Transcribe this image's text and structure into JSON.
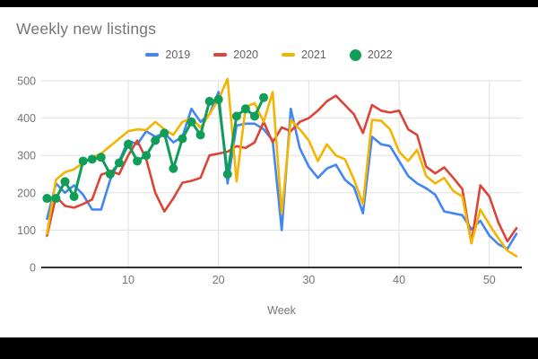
{
  "title": "Weekly new listings",
  "colors": {
    "s2019": "#4285F4",
    "s2020": "#DB4437",
    "s2021": "#F4B400",
    "s2022": "#0F9D58",
    "grid": "#e0e0e0",
    "axis_line": "#333333",
    "tick_text": "#757575",
    "title_text": "#757575",
    "legend_text": "#616161",
    "background": "#ffffff",
    "letterbox": "#000000"
  },
  "legend": {
    "items": [
      {
        "label": "2019",
        "color": "#4285F4",
        "marker": "line"
      },
      {
        "label": "2020",
        "color": "#DB4437",
        "marker": "line"
      },
      {
        "label": "2021",
        "color": "#F4B400",
        "marker": "line"
      },
      {
        "label": "2022",
        "color": "#0F9D58",
        "marker": "circle"
      }
    ]
  },
  "axes": {
    "x_label": "Week",
    "x_ticks": [
      10,
      20,
      30,
      40,
      50
    ],
    "y_ticks": [
      0,
      100,
      200,
      300,
      400,
      500
    ],
    "x_min": 1,
    "x_max": 53,
    "y_min": 0,
    "y_max": 500
  },
  "chart_data": {
    "type": "line",
    "title": "Weekly new listings",
    "xlabel": "Week",
    "ylabel": "",
    "x_unit": "week",
    "x_start": 1,
    "xlim": [
      1,
      53
    ],
    "ylim": [
      0,
      500
    ],
    "grid": true,
    "legend_position": "top",
    "series": [
      {
        "name": "2019",
        "color": "#4285F4",
        "style": "line",
        "values": [
          130,
          225,
          200,
          220,
          195,
          155,
          155,
          235,
          285,
          340,
          330,
          365,
          350,
          360,
          335,
          350,
          425,
          390,
          410,
          470,
          225,
          380,
          385,
          385,
          370,
          340,
          100,
          425,
          320,
          270,
          240,
          265,
          275,
          235,
          215,
          145,
          350,
          330,
          325,
          285,
          245,
          225,
          212,
          195,
          150,
          145,
          140,
          102,
          125,
          85,
          62,
          50,
          90
        ]
      },
      {
        "name": "2020",
        "color": "#DB4437",
        "style": "line",
        "values": [
          85,
          190,
          165,
          160,
          170,
          182,
          248,
          258,
          250,
          300,
          340,
          290,
          200,
          150,
          185,
          227,
          232,
          240,
          300,
          305,
          310,
          325,
          320,
          335,
          390,
          335,
          375,
          365,
          390,
          400,
          420,
          445,
          460,
          435,
          410,
          360,
          435,
          420,
          415,
          420,
          370,
          355,
          270,
          252,
          268,
          240,
          210,
          65,
          220,
          190,
          120,
          70,
          105
        ]
      },
      {
        "name": "2021",
        "color": "#F4B400",
        "style": "line",
        "values": [
          90,
          235,
          255,
          263,
          280,
          295,
          305,
          325,
          345,
          365,
          370,
          368,
          390,
          370,
          355,
          390,
          400,
          375,
          410,
          450,
          505,
          230,
          430,
          440,
          390,
          470,
          145,
          395,
          370,
          340,
          285,
          330,
          300,
          290,
          235,
          170,
          395,
          393,
          370,
          310,
          285,
          315,
          245,
          225,
          240,
          205,
          190,
          65,
          155,
          115,
          78,
          45,
          30
        ]
      },
      {
        "name": "2022",
        "color": "#0F9D58",
        "style": "line+markers",
        "values": [
          185,
          185,
          230,
          190,
          285,
          290,
          295,
          250,
          280,
          330,
          285,
          300,
          340,
          360,
          265,
          345,
          390,
          355,
          445,
          450,
          250,
          405,
          425,
          405,
          455
        ]
      }
    ]
  }
}
